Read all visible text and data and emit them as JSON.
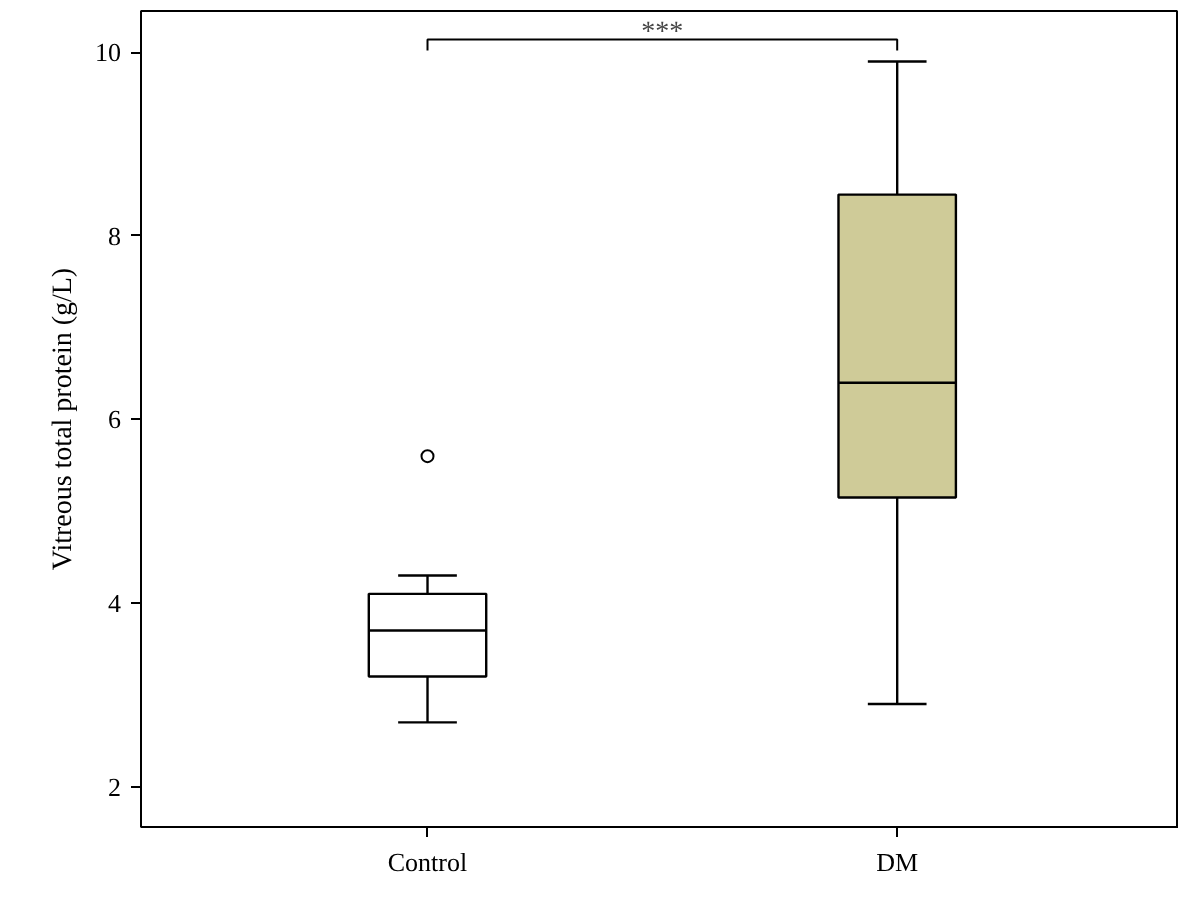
{
  "chart_data": {
    "type": "box",
    "ylabel": "Vitreous total protein (g/L)",
    "categories": [
      "Control",
      "DM"
    ],
    "ylim": [
      1.56,
      10.45
    ],
    "yticks": [
      2,
      4,
      6,
      8,
      10
    ],
    "grid": false,
    "series": [
      {
        "color": "#ffffff",
        "boxes": [
          {
            "low": 2.7,
            "q1": 3.2,
            "median": 3.7,
            "q3": 4.1,
            "high": 4.3,
            "outliers": [
              5.6
            ]
          },
          null
        ]
      },
      {
        "color": "#cfcb98",
        "boxes": [
          null,
          {
            "low": 2.9,
            "q1": 5.15,
            "median": 6.4,
            "q3": 8.45,
            "high": 9.9
          }
        ]
      }
    ],
    "annotations": [
      "***"
    ]
  }
}
